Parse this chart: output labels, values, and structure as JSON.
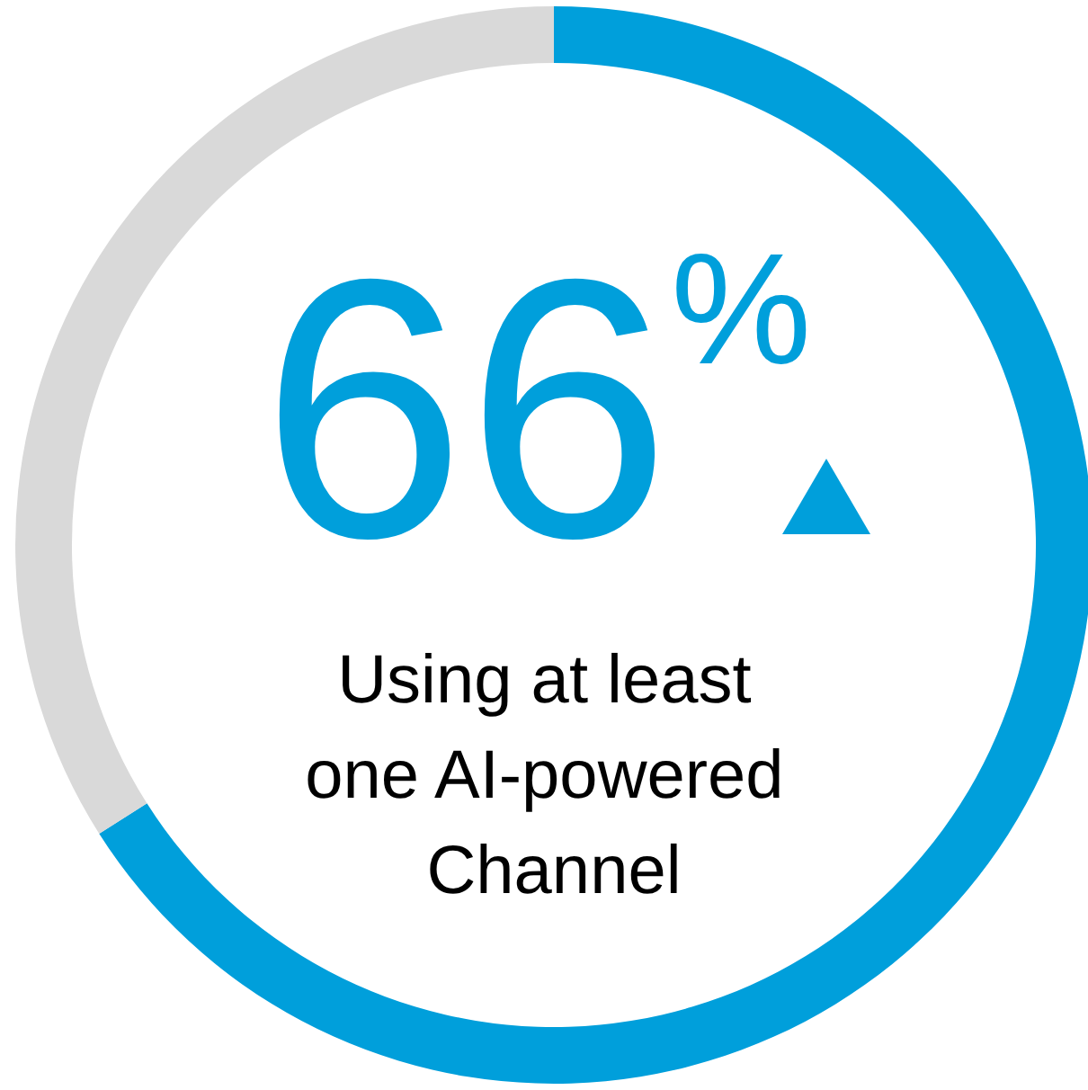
{
  "chart_data": {
    "type": "donut",
    "subtitle": "Using at least one AI-powered Channel",
    "categories": [
      null,
      null
    ],
    "values": [
      66,
      34
    ],
    "colors": [
      "#009fdb",
      "#d9d9d9"
    ],
    "value_labels": [
      "66%",
      null
    ]
  }
}
